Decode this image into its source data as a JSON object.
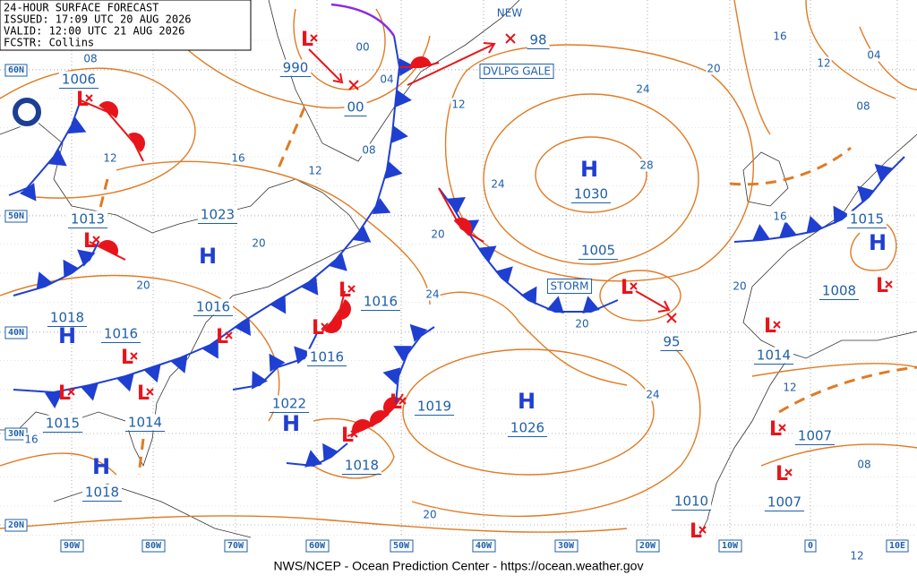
{
  "header": {
    "title": "24-HOUR SURFACE FORECAST",
    "issued": "ISSUED: 17:09 UTC 20 AUG 2026",
    "valid": "VALID:  12:00 UTC 21 AUG 2026",
    "fcstr": "FCSTR:  Collins"
  },
  "footer": "NWS/NCEP - Ocean Prediction Center - https://ocean.weather.gov",
  "latitudes": [
    "60N",
    "50N",
    "40N",
    "30N",
    "20N"
  ],
  "longitudes": [
    "90W",
    "80W",
    "70W",
    "60W",
    "50W",
    "40W",
    "30W",
    "20W",
    "10W",
    "0",
    "10E"
  ],
  "annotations": [
    "NEW",
    "DVLPG GALE",
    "STORM"
  ],
  "highs": [
    "H",
    "H",
    "H",
    "H",
    "H",
    "H",
    "H"
  ],
  "lows": [
    "L",
    "L",
    "L",
    "L",
    "L",
    "L",
    "L",
    "L",
    "L",
    "L",
    "L",
    "L",
    "L",
    "L",
    "L",
    "L",
    "L"
  ],
  "pressure_labels": [
    "990",
    "00",
    "98",
    "1006",
    "1013",
    "1023",
    "1030",
    "1005",
    "1016",
    "1016",
    "1016",
    "1018",
    "1016",
    "1008",
    "1015",
    "1014",
    "95",
    "1022",
    "1019",
    "1026",
    "1015",
    "1014",
    "1018",
    "1007",
    "1007",
    "1010",
    "1018"
  ],
  "isobar_labels": [
    "08",
    "00",
    "04",
    "12",
    "16",
    "12",
    "08",
    "12",
    "24",
    "28",
    "24",
    "20",
    "16",
    "12",
    "04",
    "08",
    "16",
    "20",
    "20",
    "20",
    "24",
    "20",
    "20",
    "24",
    "12",
    "08",
    "20",
    "16",
    "12"
  ]
}
